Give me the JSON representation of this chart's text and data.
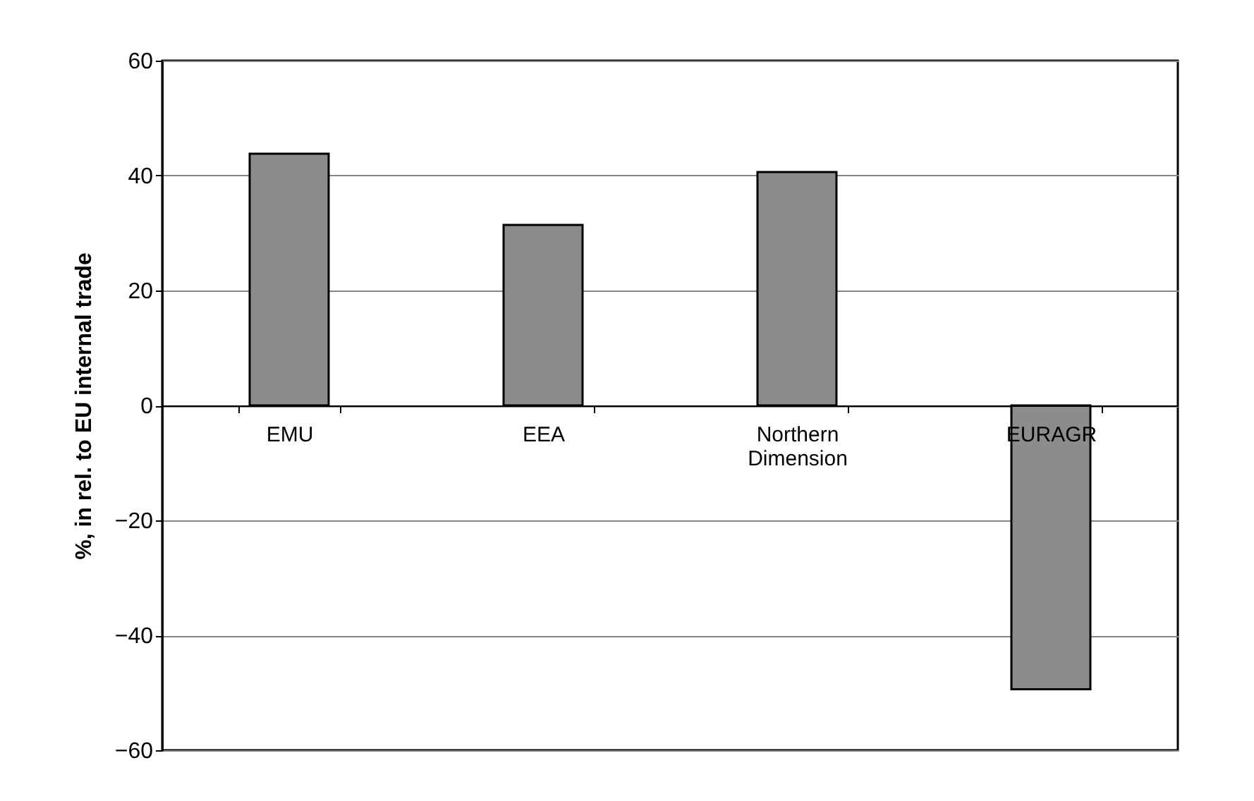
{
  "chart_data": {
    "type": "bar",
    "ylabel": "%, in rel. to EU internal trade",
    "categories": [
      "EMU",
      "EEA",
      "Northern Dimension",
      "EURAGR"
    ],
    "values": [
      43.8,
      31.4,
      40.6,
      -49.4
    ],
    "color": "#8c8c8c",
    "ylim": [
      -60,
      60
    ],
    "yticks": [
      -60,
      -40,
      -20,
      0,
      20,
      40,
      60
    ],
    "grid": "y",
    "legend": false
  }
}
